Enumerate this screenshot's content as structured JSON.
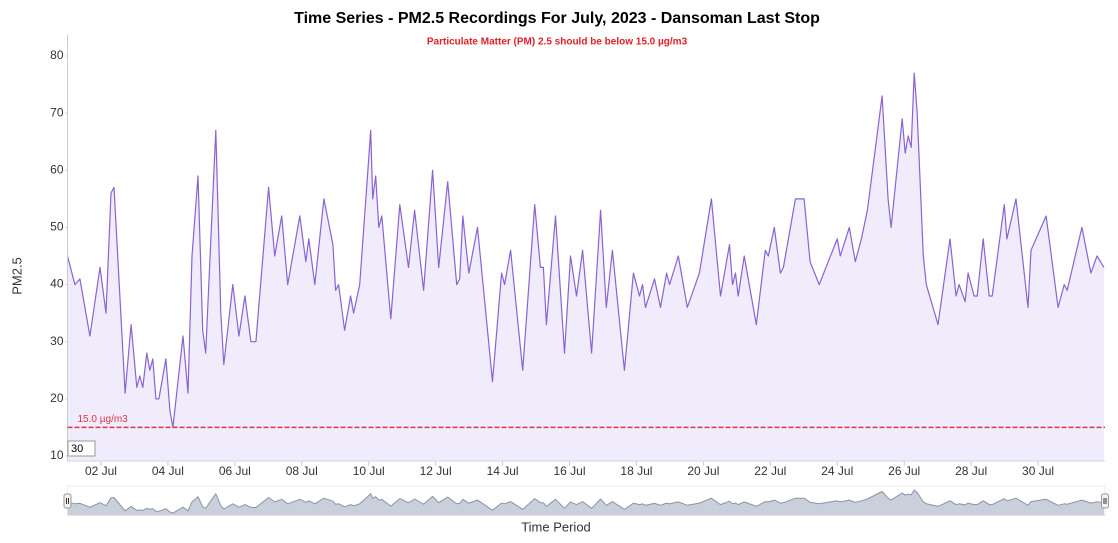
{
  "chart_data": {
    "type": "area",
    "title": "Time Series - PM2.5 Recordings For July, 2023 - Dansoman Last Stop",
    "subtitle": "Particulate Matter (PM) 2.5 should be below 15.0 µg/m3",
    "y_label": "PM2.5",
    "x_label": "Time Period",
    "range_input": "30",
    "color": "#8a63d2",
    "fill": "#f1ecfc",
    "threshold": {
      "value": 15,
      "label": "15.0 µg/m3",
      "color": "#dc3545"
    },
    "xlim": [
      1,
      32
    ],
    "ylim": [
      10,
      80
    ],
    "yticks": [
      10,
      20,
      30,
      40,
      50,
      60,
      70,
      80
    ],
    "xticks": [
      {
        "value": 2,
        "label": "02 Jul"
      },
      {
        "value": 4,
        "label": "04 Jul"
      },
      {
        "value": 6,
        "label": "06 Jul"
      },
      {
        "value": 8,
        "label": "08 Jul"
      },
      {
        "value": 10,
        "label": "10 Jul"
      },
      {
        "value": 12,
        "label": "12 Jul"
      },
      {
        "value": 14,
        "label": "14 Jul"
      },
      {
        "value": 16,
        "label": "16 Jul"
      },
      {
        "value": 18,
        "label": "18 Jul"
      },
      {
        "value": 20,
        "label": "20 Jul"
      },
      {
        "value": 22,
        "label": "22 Jul"
      },
      {
        "value": 24,
        "label": "24 Jul"
      },
      {
        "value": 26,
        "label": "26 Jul"
      },
      {
        "value": 28,
        "label": "28 Jul"
      },
      {
        "value": 30,
        "label": "30 Jul"
      }
    ],
    "x": [
      1.0,
      1.22,
      1.37,
      1.67,
      1.97,
      2.15,
      2.3,
      2.39,
      2.72,
      2.9,
      3.07,
      3.16,
      3.25,
      3.37,
      3.46,
      3.55,
      3.64,
      3.73,
      3.94,
      4.06,
      4.15,
      4.45,
      4.6,
      4.72,
      4.9,
      5.04,
      5.13,
      5.43,
      5.58,
      5.67,
      5.94,
      6.12,
      6.3,
      6.48,
      6.63,
      7.01,
      7.19,
      7.4,
      7.58,
      7.94,
      8.12,
      8.21,
      8.39,
      8.66,
      8.93,
      9.01,
      9.1,
      9.28,
      9.46,
      9.55,
      9.73,
      10.0,
      10.06,
      10.12,
      10.21,
      10.3,
      10.39,
      10.66,
      10.93,
      11.19,
      11.37,
      11.64,
      11.91,
      12.09,
      12.36,
      12.63,
      12.72,
      12.81,
      12.99,
      13.25,
      13.7,
      13.97,
      14.06,
      14.24,
      14.6,
      14.96,
      15.13,
      15.22,
      15.31,
      15.58,
      15.85,
      16.03,
      16.21,
      16.39,
      16.66,
      16.93,
      17.1,
      17.28,
      17.64,
      17.91,
      18.09,
      18.18,
      18.27,
      18.54,
      18.72,
      18.9,
      18.99,
      19.25,
      19.52,
      19.88,
      20.24,
      20.51,
      20.78,
      20.87,
      20.96,
      21.04,
      21.22,
      21.58,
      21.85,
      21.94,
      22.12,
      22.3,
      22.39,
      22.75,
      23.01,
      23.19,
      23.46,
      23.73,
      24.0,
      24.09,
      24.36,
      24.54,
      24.72,
      24.9,
      25.34,
      25.52,
      25.61,
      25.94,
      26.03,
      26.12,
      26.21,
      26.3,
      26.39,
      26.57,
      26.66,
      27.01,
      27.37,
      27.55,
      27.64,
      27.82,
      27.91,
      28.09,
      28.18,
      28.36,
      28.54,
      28.63,
      28.99,
      29.07,
      29.34,
      29.7,
      29.79,
      30.24,
      30.6,
      30.78,
      30.87,
      31.31,
      31.58,
      31.76,
      31.97
    ],
    "values": [
      45,
      40,
      41,
      31,
      43,
      35,
      56,
      57,
      21,
      33,
      22,
      24,
      22,
      28,
      25,
      27,
      20,
      20,
      27,
      18,
      15,
      31,
      21,
      45,
      59,
      32,
      28,
      67,
      35,
      26,
      40,
      31,
      38,
      30,
      30,
      57,
      45,
      52,
      40,
      52,
      44,
      48,
      40,
      55,
      47,
      39,
      40,
      32,
      38,
      35,
      40,
      62,
      67,
      55,
      59,
      50,
      52,
      34,
      54,
      43,
      53,
      39,
      60,
      43,
      58,
      40,
      41,
      52,
      42,
      50,
      23,
      42,
      40,
      46,
      25,
      54,
      43,
      43,
      33,
      52,
      28,
      45,
      38,
      46,
      28,
      53,
      36,
      46,
      25,
      42,
      38,
      40,
      36,
      41,
      36,
      42,
      40,
      45,
      36,
      42,
      55,
      38,
      47,
      40,
      42,
      38,
      45,
      33,
      46,
      45,
      50,
      42,
      43,
      55,
      55,
      44,
      40,
      44,
      48,
      45,
      50,
      44,
      48,
      53,
      73,
      55,
      50,
      69,
      63,
      66,
      64,
      77,
      70,
      45,
      40,
      33,
      48,
      38,
      40,
      37,
      42,
      38,
      38,
      48,
      38,
      38,
      54,
      48,
      55,
      36,
      46,
      52,
      36,
      40,
      39,
      50,
      42,
      45,
      43
    ]
  }
}
